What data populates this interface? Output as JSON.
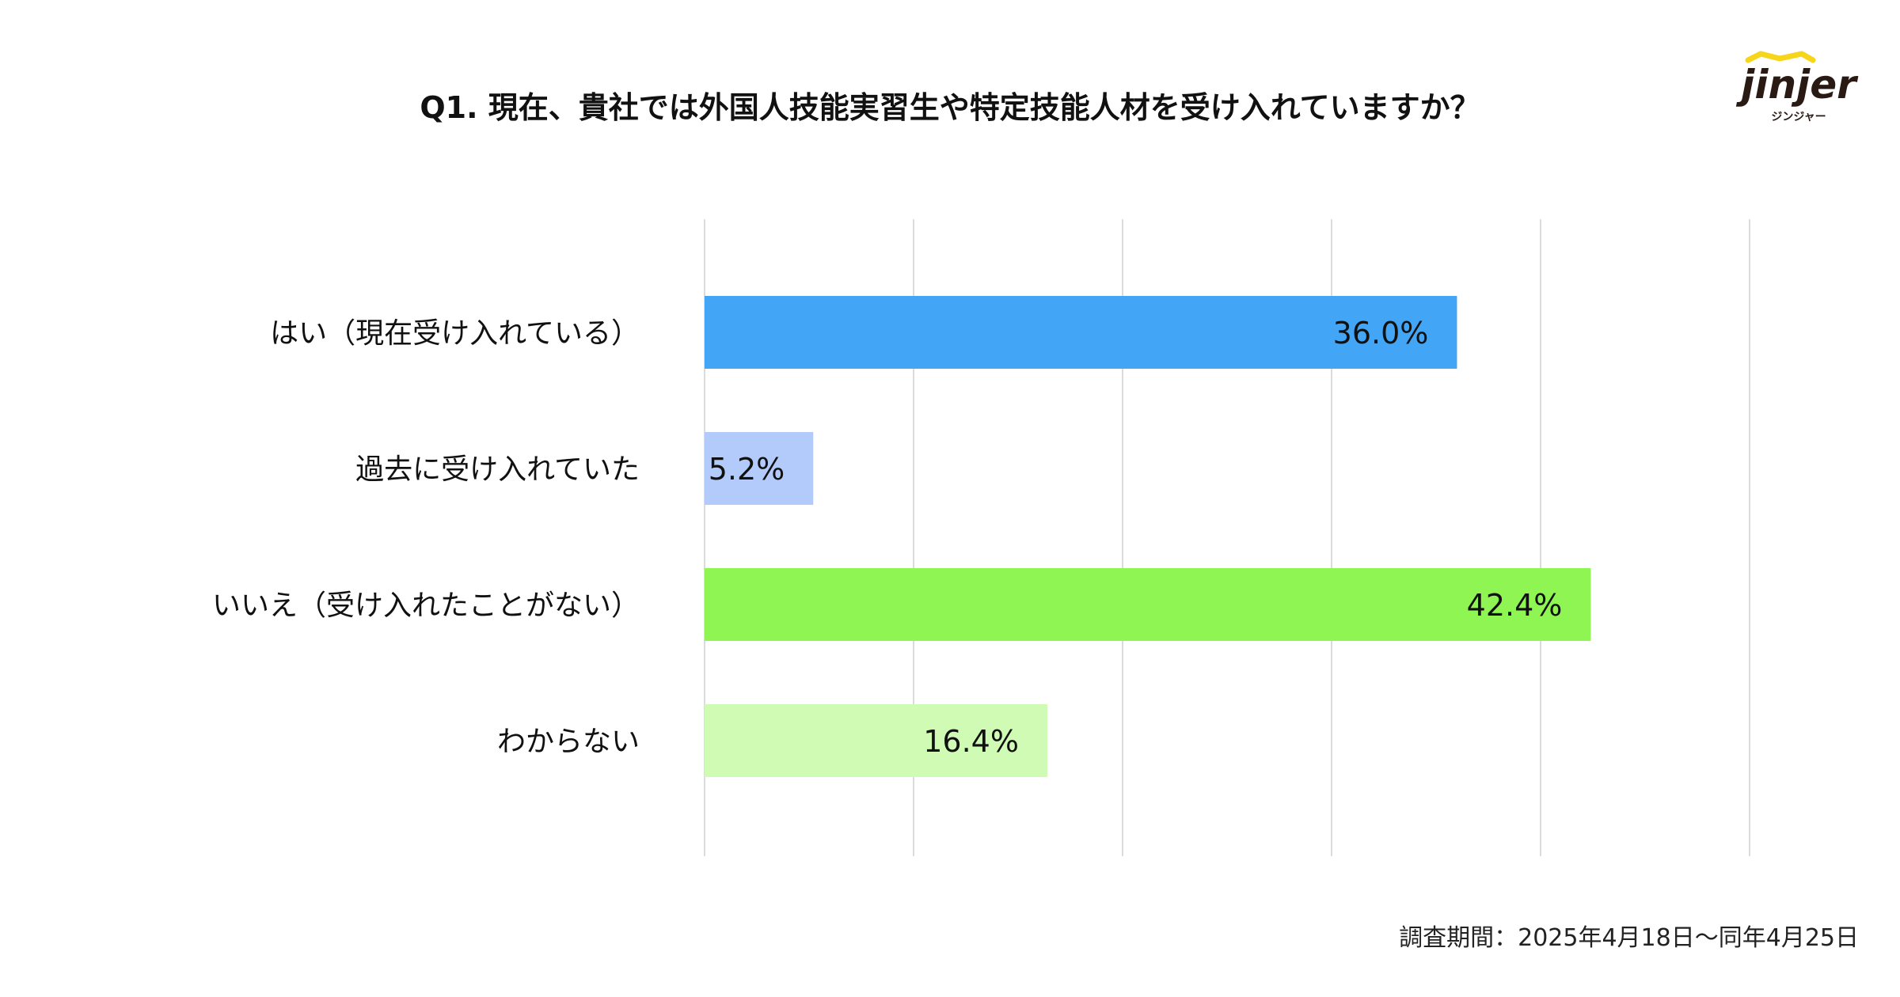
{
  "title": "Q1. 現在、貴社では外国人技能実習生や特定技能人材を受け入れていますか？",
  "logo": {
    "wordmark": "jinjer",
    "subtext": "ジンジャー",
    "icon": "roof-accent-icon",
    "accent_color": "#F6D51B"
  },
  "footnote": "調査期間：2025年4月18日〜同年4月25日",
  "chart_data": {
    "type": "bar",
    "orientation": "horizontal",
    "title": "Q1. 現在、貴社では外国人技能実習生や特定技能人材を受け入れていますか？",
    "categories": [
      "はい（現在受け入れている）",
      "過去に受け入れていた",
      "いいえ（受け入れたことがない）",
      "わからない"
    ],
    "values": [
      36.0,
      5.2,
      42.4,
      16.4
    ],
    "value_labels": [
      "36.0%",
      "5.2%",
      "42.4%",
      "16.4%"
    ],
    "colors": [
      "#42A5F5",
      "#B3CBFB",
      "#8FF552",
      "#CFFBB5"
    ],
    "xlim": [
      0,
      50
    ],
    "grid": true,
    "legend": false
  }
}
